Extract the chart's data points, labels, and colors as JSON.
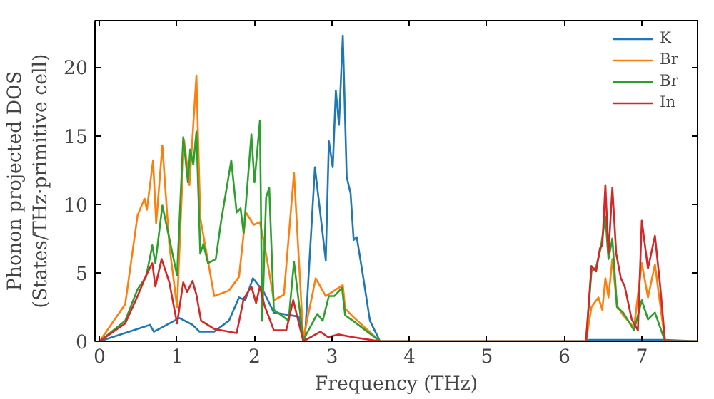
{
  "chart_data": {
    "type": "line",
    "xlabel": "Frequency (THz)",
    "ylabel": "Phonon projected DOS\n(States/THz·primitive cell)",
    "xlim": [
      -0.06,
      7.72
    ],
    "ylim": [
      0,
      23.4
    ],
    "xticks": [
      0,
      1,
      2,
      3,
      4,
      5,
      6,
      7
    ],
    "yticks": [
      0,
      5,
      10,
      15,
      20
    ],
    "grid": false,
    "legend": "top right",
    "marker": "none",
    "line_style": "solid",
    "series": [
      {
        "name": "K",
        "color": "#1f77b4",
        "x": [
          0,
          0.65,
          0.7,
          1.03,
          1.2,
          1.29,
          1.48,
          1.67,
          1.8,
          1.88,
          1.98,
          2.12,
          2.25,
          2.57,
          2.65,
          2.78,
          2.92,
          2.96,
          3.01,
          3.05,
          3.09,
          3.14,
          3.19,
          3.24,
          3.28,
          3.32,
          3.4,
          3.49,
          3.62,
          6.27,
          6.3,
          7.3,
          7.72
        ],
        "values": [
          0,
          1.2,
          0.7,
          1.7,
          1.2,
          0.7,
          0.7,
          1.5,
          3.2,
          3.0,
          4.6,
          3.6,
          2.1,
          1.8,
          0.1,
          12.7,
          5.9,
          14.6,
          12.7,
          18.3,
          15.8,
          22.3,
          12.0,
          10.8,
          7.4,
          7.6,
          4.8,
          1.5,
          0,
          0,
          0.1,
          0.1,
          0
        ]
      },
      {
        "name": "Br",
        "color": "#ff7f0e",
        "x": [
          0,
          0.33,
          0.49,
          0.58,
          0.61,
          0.69,
          0.73,
          0.81,
          0.9,
          1.0,
          1.09,
          1.16,
          1.25,
          1.3,
          1.48,
          1.67,
          1.8,
          1.89,
          1.99,
          2.07,
          2.13,
          2.25,
          2.38,
          2.51,
          2.63,
          2.79,
          2.92,
          3.14,
          3.17,
          3.27,
          3.62,
          6.28,
          6.35,
          6.44,
          6.49,
          6.53,
          6.57,
          6.62,
          6.68,
          6.76,
          6.9,
          7.0,
          7.08,
          7.17,
          7.3,
          7.72
        ],
        "values": [
          0,
          2.7,
          9.2,
          10.4,
          9.6,
          13.2,
          8.6,
          14.3,
          7.0,
          2.5,
          14.7,
          11.4,
          19.4,
          9.0,
          3.3,
          3.7,
          4.7,
          9.4,
          8.5,
          8.7,
          7.0,
          3.0,
          3.4,
          12.3,
          0.2,
          4.6,
          3.3,
          4.1,
          2.4,
          1.8,
          0,
          0,
          2.5,
          3.2,
          2.3,
          4.6,
          3.2,
          6.0,
          2.6,
          1.9,
          1.0,
          5.7,
          3.2,
          5.6,
          0,
          0
        ]
      },
      {
        "name": "Br",
        "color": "#2ca02c",
        "x": [
          0,
          0.33,
          0.49,
          0.6,
          0.68,
          0.72,
          0.81,
          0.9,
          1.0,
          1.08,
          1.14,
          1.17,
          1.21,
          1.25,
          1.3,
          1.34,
          1.4,
          1.5,
          1.57,
          1.7,
          1.77,
          1.82,
          1.86,
          1.96,
          2.0,
          2.07,
          2.1,
          2.15,
          2.19,
          2.25,
          2.44,
          2.51,
          2.63,
          2.81,
          2.88,
          2.96,
          3.03,
          3.13,
          3.17,
          3.27,
          3.62,
          6.28,
          6.35,
          6.41,
          6.47,
          6.53,
          6.57,
          6.62,
          6.68,
          6.76,
          6.9,
          7.0,
          7.08,
          7.17,
          7.3,
          7.72
        ],
        "values": [
          0,
          1.5,
          3.8,
          4.7,
          7.0,
          5.7,
          9.9,
          7.5,
          4.8,
          14.9,
          11.6,
          14.0,
          12.9,
          15.3,
          6.4,
          7.1,
          5.7,
          6.0,
          8.8,
          13.2,
          9.4,
          9.7,
          7.9,
          15.1,
          11.6,
          16.1,
          1.5,
          10.5,
          11.2,
          2.3,
          1.5,
          5.8,
          0.1,
          2.0,
          1.5,
          3.3,
          3.3,
          3.9,
          1.9,
          1.5,
          0,
          0,
          5.1,
          5.4,
          6.8,
          9.1,
          6.0,
          7.5,
          2.5,
          2.1,
          0.8,
          3.0,
          1.6,
          2.1,
          0,
          0
        ]
      },
      {
        "name": "In",
        "color": "#d62728",
        "x": [
          0,
          0.33,
          0.49,
          0.6,
          0.68,
          0.72,
          0.8,
          0.9,
          1.0,
          1.08,
          1.13,
          1.2,
          1.25,
          1.31,
          1.48,
          1.77,
          1.86,
          1.96,
          2.02,
          2.07,
          2.13,
          2.25,
          2.41,
          2.5,
          2.63,
          2.85,
          2.95,
          3.08,
          3.27,
          3.62,
          6.28,
          6.35,
          6.41,
          6.46,
          6.49,
          6.53,
          6.57,
          6.62,
          6.67,
          6.73,
          6.78,
          6.87,
          6.95,
          7.0,
          7.08,
          7.17,
          7.24,
          7.3,
          7.72
        ],
        "values": [
          0,
          1.3,
          3.3,
          4.8,
          5.7,
          4.0,
          6.0,
          4.3,
          1.3,
          4.3,
          3.6,
          4.4,
          3.4,
          1.5,
          0.9,
          0.6,
          3.1,
          4.0,
          2.8,
          4.0,
          2.6,
          0.8,
          0.8,
          3.0,
          0,
          0.7,
          0.3,
          0.5,
          0.3,
          0,
          0,
          5.5,
          5.1,
          6.8,
          7.0,
          11.4,
          6.4,
          11.2,
          6.4,
          4.6,
          4.0,
          1.6,
          0.8,
          8.8,
          5.3,
          7.7,
          3.9,
          0,
          0
        ]
      }
    ]
  }
}
